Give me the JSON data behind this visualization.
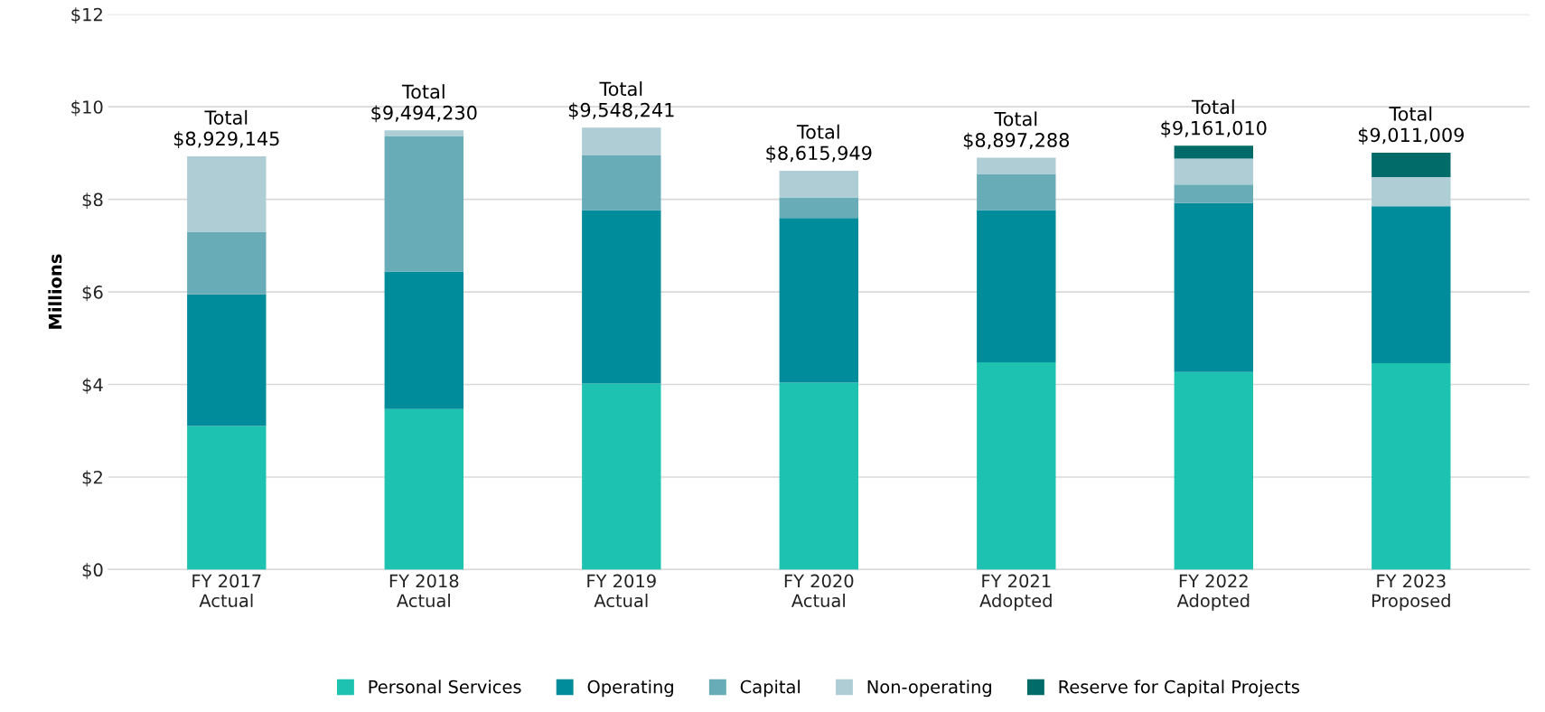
{
  "chart_data": {
    "type": "bar",
    "stacked": true,
    "ylabel": "Millions",
    "categories": [
      "FY 2017\nActual",
      "FY 2018\nActual",
      "FY 2019\nActual",
      "FY 2020\nActual",
      "FY 2021\nAdopted",
      "FY 2022\nAdopted",
      "FY 2023\nProposed"
    ],
    "series": [
      {
        "name": "Personal Services",
        "color": "#1dc3b0",
        "values": [
          3.1,
          3.47,
          4.02,
          4.04,
          4.48,
          4.27,
          4.46
        ]
      },
      {
        "name": "Operating",
        "color": "#008c9a",
        "values": [
          2.85,
          2.97,
          3.75,
          3.56,
          3.29,
          3.65,
          3.39
        ]
      },
      {
        "name": "Capital",
        "color": "#68acb8",
        "values": [
          1.35,
          2.93,
          1.18,
          0.44,
          0.78,
          0.4,
          0
        ]
      },
      {
        "name": "Non-operating",
        "color": "#aecdd5",
        "values": [
          1.63,
          0.12,
          0.6,
          0.58,
          0.35,
          0.56,
          0.63
        ]
      },
      {
        "name": "Reserve for Capital Projects",
        "color": "#006b68",
        "values": [
          0,
          0,
          0,
          0,
          0,
          0.28,
          0.53
        ]
      }
    ],
    "totals": [
      "Total\n$8,929,145",
      "Total\n$9,494,230",
      "Total\n$9,548,241",
      "Total\n$8,615,949",
      "Total\n$8,897,288",
      "Total\n$9,161,010",
      "Total\n$9,011,009"
    ],
    "ylim": [
      0,
      12
    ],
    "yticks": [
      {
        "value": 0,
        "label": "$0"
      },
      {
        "value": 2,
        "label": "$2"
      },
      {
        "value": 4,
        "label": "$4"
      },
      {
        "value": 6,
        "label": "$6"
      },
      {
        "value": 8,
        "label": "$8"
      },
      {
        "value": 10,
        "label": "$10"
      },
      {
        "value": 12,
        "label": "$12"
      }
    ],
    "grid": "y",
    "legend": "bottom"
  }
}
